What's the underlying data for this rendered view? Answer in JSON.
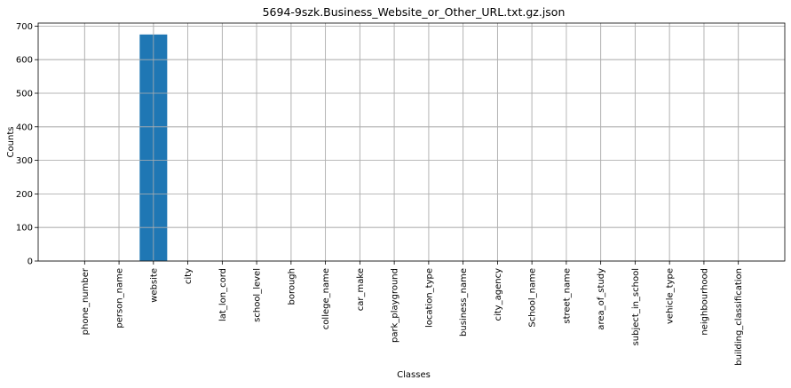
{
  "chart_data": {
    "type": "bar",
    "title": "5694-9szk.Business_Website_or_Other_URL.txt.gz.json",
    "xlabel": "Classes",
    "ylabel": "Counts",
    "categories": [
      "phone_number",
      "person_name",
      "website",
      "city",
      "lat_lon_cord",
      "school_level",
      "borough",
      "college_name",
      "car_make",
      "park_playground",
      "location_type",
      "business_name",
      "city_agency",
      "School_name",
      "street_name",
      "area_of_study",
      "subject_in_school",
      "vehicle_type",
      "neighbourhood",
      "building_classification"
    ],
    "values": [
      0,
      0,
      675,
      0,
      0,
      0,
      0,
      0,
      0,
      0,
      0,
      0,
      0,
      0,
      0,
      0,
      0,
      0,
      0,
      0
    ],
    "ylim": [
      0,
      709
    ],
    "yticks": [
      0,
      100,
      200,
      300,
      400,
      500,
      600,
      700
    ],
    "grid": true,
    "bar_color": "#1f77b4",
    "grid_color": "#b0b0b0"
  }
}
